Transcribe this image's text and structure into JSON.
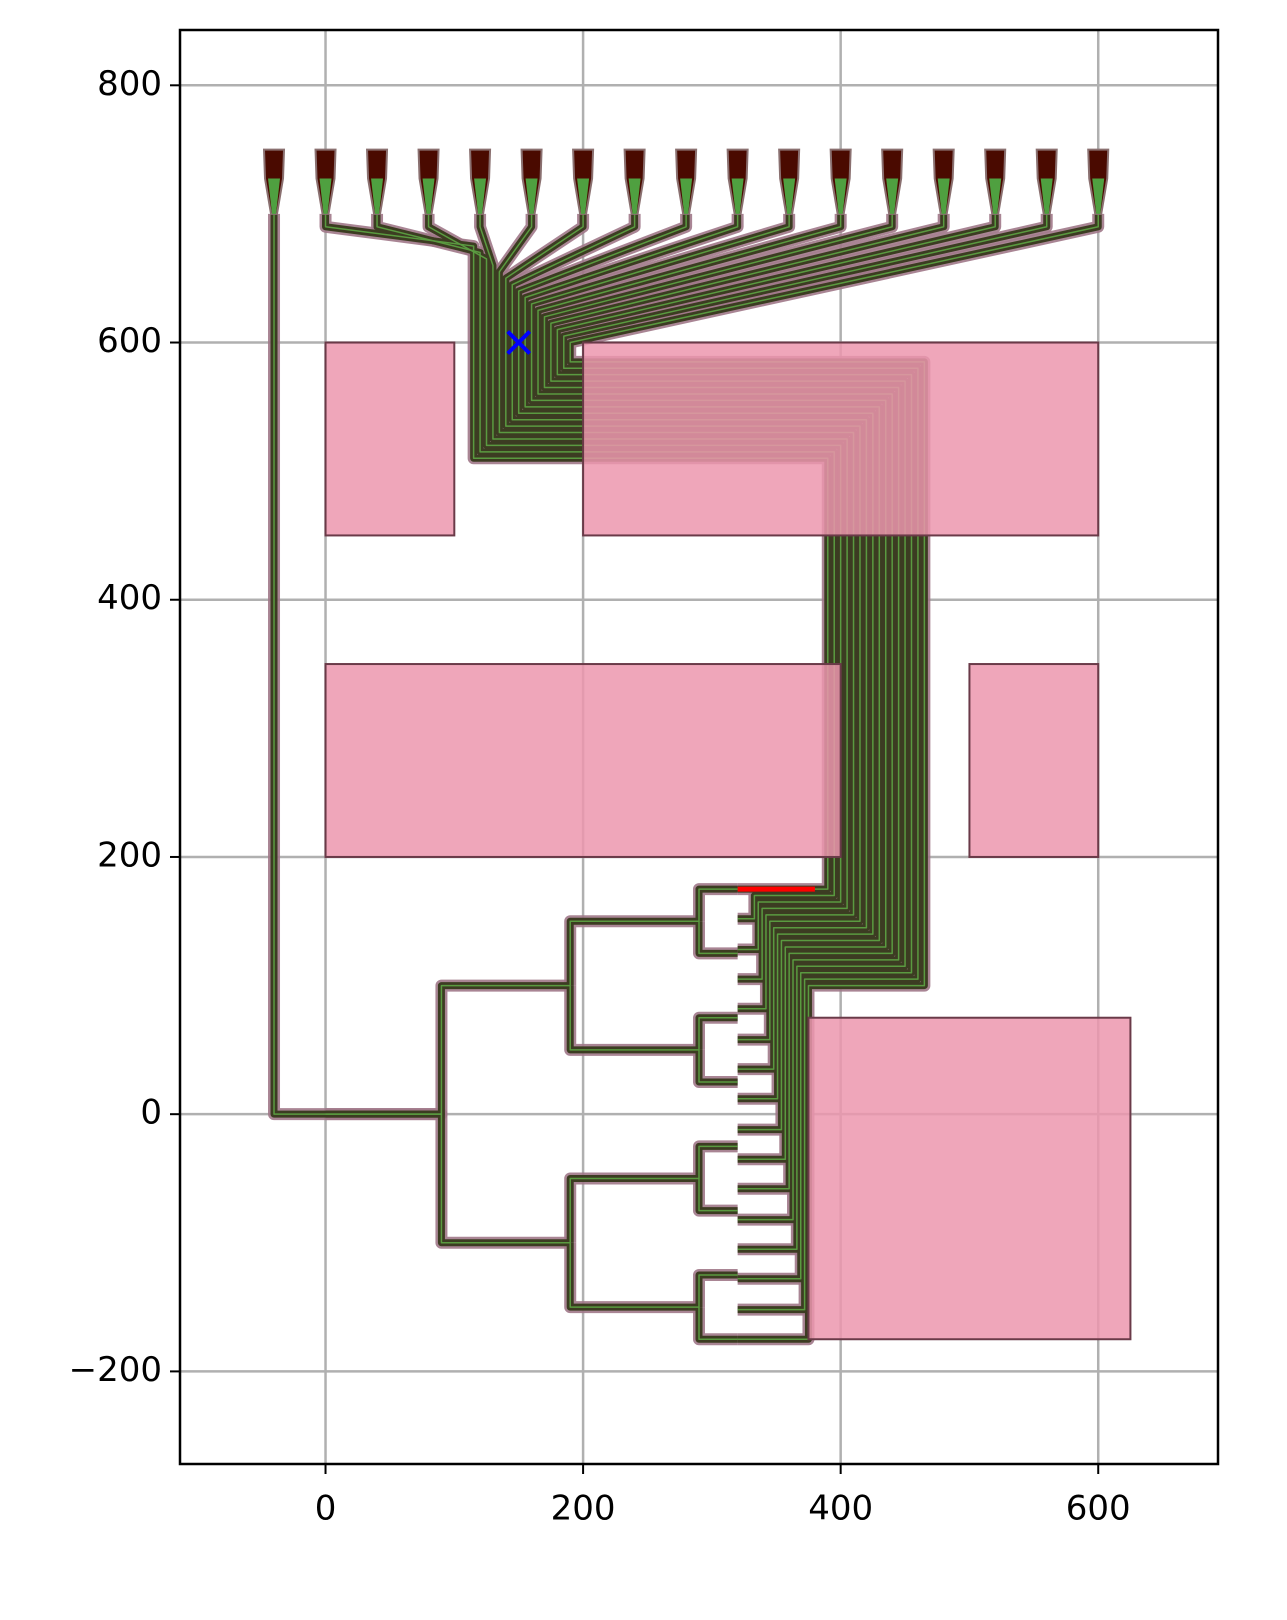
{
  "chart_data": {
    "type": "layout",
    "xlim": [
      -113,
      693
    ],
    "ylim": [
      -272,
      843
    ],
    "xticks": [
      0,
      200,
      400,
      600
    ],
    "yticks": [
      {
        "value": -200,
        "label": "−200"
      },
      0,
      200,
      400,
      600,
      800
    ],
    "grid": true,
    "obstacles": [
      [
        0,
        450,
        100,
        600
      ],
      [
        200,
        450,
        600,
        600
      ],
      [
        0,
        200,
        400,
        350
      ],
      [
        500,
        200,
        600,
        350
      ],
      [
        375,
        -175,
        625,
        75
      ]
    ],
    "obstacle_color": "#ec96ae",
    "coupler_x": [
      -40,
      0,
      40,
      80,
      120,
      160,
      200,
      240,
      280,
      320,
      360,
      400,
      440,
      480,
      520,
      560,
      600
    ],
    "coupler_y": [
      700,
      750
    ],
    "marker": {
      "x": 150,
      "y": 600,
      "color": "#0000ff"
    },
    "error_segment": {
      "x": [
        320,
        380
      ],
      "y": [
        175,
        175
      ],
      "color": "#ff0000"
    },
    "routes": [
      {
        "x": [
          -40,
          -40,
          0
        ],
        "y": [
          700,
          0,
          0
        ]
      },
      {
        "x": [
          0,
          90,
          90,
          190
        ],
        "y": [
          0,
          0,
          100,
          100
        ]
      },
      {
        "x": [
          0,
          90,
          90,
          190
        ],
        "y": [
          0,
          0,
          -100,
          -100
        ]
      },
      {
        "x": [
          190,
          190,
          290
        ],
        "y": [
          100,
          150,
          150
        ]
      },
      {
        "x": [
          190,
          190,
          290
        ],
        "y": [
          100,
          50,
          50
        ]
      },
      {
        "x": [
          190,
          190,
          290
        ],
        "y": [
          -100,
          -50,
          -50
        ]
      },
      {
        "x": [
          190,
          190,
          290
        ],
        "y": [
          -100,
          -150,
          -150
        ]
      },
      {
        "x": [
          290,
          290,
          320
        ],
        "y": [
          150,
          175,
          175
        ]
      },
      {
        "x": [
          290,
          290,
          320
        ],
        "y": [
          150,
          125,
          125
        ]
      },
      {
        "x": [
          290,
          290,
          320
        ],
        "y": [
          50,
          75,
          75
        ]
      },
      {
        "x": [
          290,
          290,
          320
        ],
        "y": [
          50,
          25,
          25
        ]
      },
      {
        "x": [
          290,
          290,
          320
        ],
        "y": [
          -50,
          -25,
          -25
        ]
      },
      {
        "x": [
          290,
          290,
          320
        ],
        "y": [
          -50,
          -75,
          -75
        ]
      },
      {
        "x": [
          290,
          290,
          320
        ],
        "y": [
          -150,
          -125,
          -125
        ]
      },
      {
        "x": [
          290,
          290,
          320
        ],
        "y": [
          -150,
          -175,
          -175
        ]
      },
      {
        "x": [
          0,
          0,
          115,
          115,
          390,
          390,
          330,
          330,
          320
        ],
        "y": [
          700,
          690,
          675,
          510,
          510,
          175,
          175,
          175,
          175
        ]
      },
      {
        "x": [
          40,
          40,
          120,
          120,
          395,
          395,
          333,
          333,
          320
        ],
        "y": [
          700,
          690,
          670,
          515,
          515,
          170,
          170,
          152,
          152
        ]
      },
      {
        "x": [
          80,
          80,
          125,
          125,
          400,
          400,
          336,
          336,
          320
        ],
        "y": [
          700,
          690,
          665,
          520,
          520,
          165,
          165,
          128,
          128
        ]
      },
      {
        "x": [
          120,
          120,
          130,
          130,
          405,
          405,
          339,
          339,
          320
        ],
        "y": [
          700,
          690,
          660,
          525,
          525,
          160,
          160,
          105,
          105
        ]
      },
      {
        "x": [
          160,
          160,
          135,
          135,
          410,
          410,
          342,
          342,
          320
        ],
        "y": [
          700,
          690,
          655,
          530,
          530,
          155,
          155,
          82,
          82
        ]
      },
      {
        "x": [
          200,
          200,
          140,
          140,
          415,
          415,
          345,
          345,
          320
        ],
        "y": [
          700,
          690,
          650,
          535,
          535,
          150,
          150,
          58,
          58
        ]
      },
      {
        "x": [
          240,
          240,
          145,
          145,
          420,
          420,
          348,
          348,
          320
        ],
        "y": [
          700,
          690,
          645,
          540,
          540,
          145,
          145,
          35,
          35
        ]
      },
      {
        "x": [
          280,
          280,
          150,
          150,
          425,
          425,
          351,
          351,
          320
        ],
        "y": [
          700,
          690,
          640,
          545,
          545,
          140,
          140,
          12,
          12
        ]
      },
      {
        "x": [
          320,
          320,
          155,
          155,
          430,
          430,
          354,
          354,
          320
        ],
        "y": [
          700,
          690,
          635,
          550,
          550,
          135,
          135,
          -12,
          -12
        ]
      },
      {
        "x": [
          360,
          360,
          160,
          160,
          435,
          435,
          357,
          357,
          320
        ],
        "y": [
          700,
          690,
          630,
          555,
          555,
          130,
          130,
          -35,
          -35
        ]
      },
      {
        "x": [
          400,
          400,
          165,
          165,
          440,
          440,
          360,
          360,
          320
        ],
        "y": [
          700,
          690,
          625,
          560,
          560,
          125,
          125,
          -58,
          -58
        ]
      },
      {
        "x": [
          440,
          440,
          170,
          170,
          445,
          445,
          363,
          363,
          320
        ],
        "y": [
          700,
          690,
          620,
          565,
          565,
          120,
          120,
          -82,
          -82
        ]
      },
      {
        "x": [
          480,
          480,
          175,
          175,
          450,
          450,
          366,
          366,
          320
        ],
        "y": [
          700,
          690,
          615,
          570,
          570,
          115,
          115,
          -105,
          -105
        ]
      },
      {
        "x": [
          520,
          520,
          180,
          180,
          455,
          455,
          369,
          369,
          320
        ],
        "y": [
          700,
          690,
          610,
          575,
          575,
          110,
          110,
          -128,
          -128
        ]
      },
      {
        "x": [
          560,
          560,
          185,
          185,
          460,
          460,
          372,
          372,
          320
        ],
        "y": [
          700,
          690,
          605,
          580,
          580,
          105,
          105,
          -152,
          -152
        ]
      },
      {
        "x": [
          600,
          600,
          190,
          190,
          465,
          465,
          375,
          375,
          320
        ],
        "y": [
          700,
          690,
          600,
          585,
          585,
          100,
          100,
          -175,
          -175
        ]
      }
    ]
  }
}
